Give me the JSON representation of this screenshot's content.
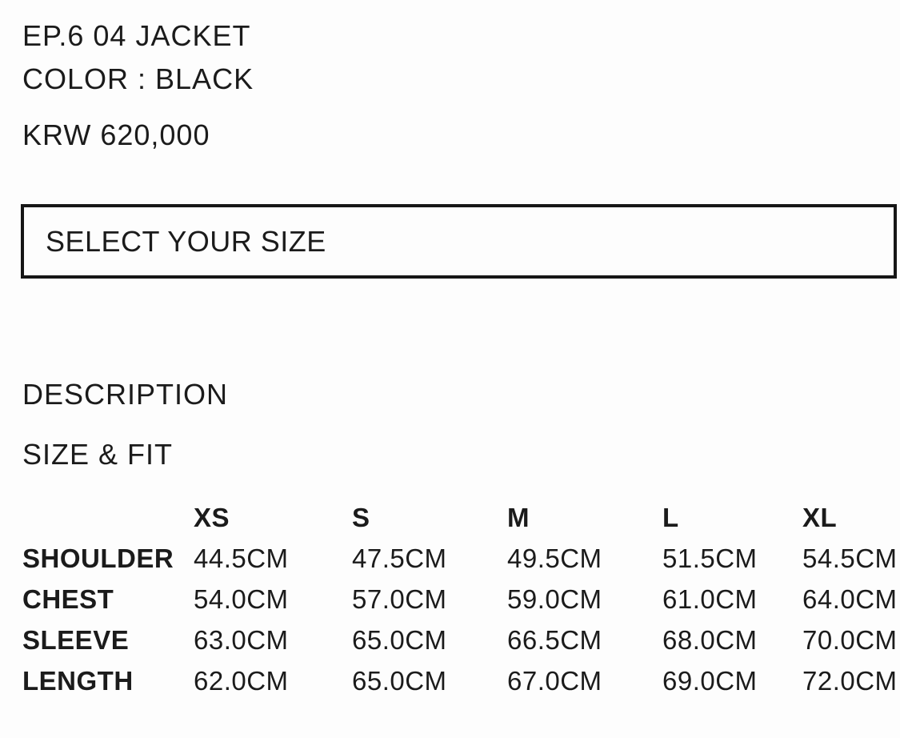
{
  "product": {
    "title": "EP.6 04 JACKET",
    "color_line": "COLOR : BLACK",
    "price": "KRW 620,000"
  },
  "size_selector": {
    "label": "SELECT YOUR SIZE"
  },
  "sections": {
    "description_heading": "DESCRIPTION",
    "size_fit_heading": "SIZE & FIT"
  },
  "size_table": {
    "columns": [
      "XS",
      "S",
      "M",
      "L",
      "XL"
    ],
    "rows": [
      {
        "label": "SHOULDER",
        "values": [
          "44.5CM",
          "47.5CM",
          "49.5CM",
          "51.5CM",
          "54.5CM"
        ]
      },
      {
        "label": "CHEST",
        "values": [
          "54.0CM",
          "57.0CM",
          "59.0CM",
          "61.0CM",
          "64.0CM"
        ]
      },
      {
        "label": "SLEEVE",
        "values": [
          "63.0CM",
          "65.0CM",
          "66.5CM",
          "68.0CM",
          "70.0CM"
        ]
      },
      {
        "label": "LENGTH",
        "values": [
          "62.0CM",
          "65.0CM",
          "67.0CM",
          "69.0CM",
          "72.0CM"
        ]
      }
    ]
  },
  "colors": {
    "text": "#1b1b1b",
    "background": "#fdfdfd",
    "select_border": "#161616"
  }
}
